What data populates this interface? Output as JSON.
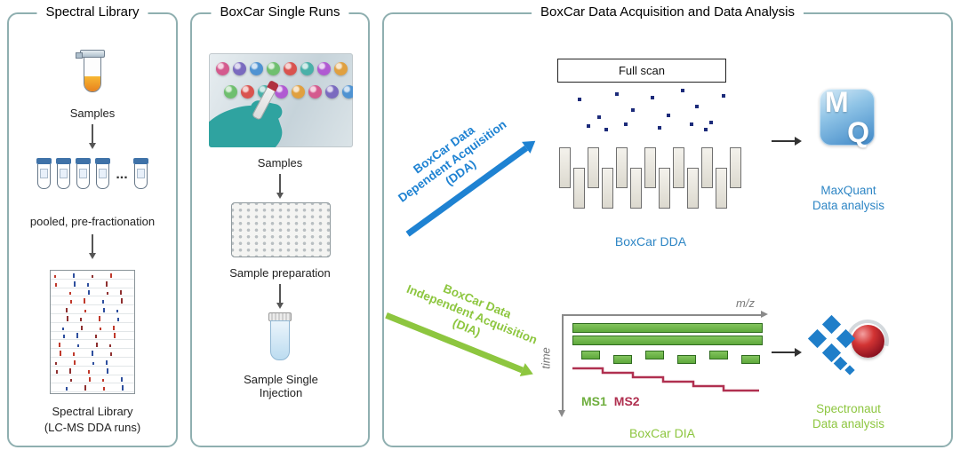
{
  "colors": {
    "panel-border": "#8FAFB0",
    "blue": "#1E82D2",
    "green": "#8DC63F",
    "caption-blue": "#2E86C5",
    "ms1-green": "#6FAE3E",
    "ms2-red": "#B03050",
    "ion-navy": "#1C2B7A",
    "axis-gray": "#8a8a8a"
  },
  "panel1": {
    "title": "Spectral Library",
    "samples_label": "Samples",
    "ellipsis": "...",
    "pooled_label": "pooled, pre-fractionation",
    "footer_line1": "Spectral Library",
    "footer_line2": "(LC-MS DDA runs)"
  },
  "panel2": {
    "title": "BoxCar Single Runs",
    "samples_label": "Samples",
    "prep_label": "Sample preparation",
    "injection_label": "Sample Single Injection"
  },
  "panel3": {
    "title": "BoxCar Data Acquisition and Data Analysis",
    "dda": {
      "label_lines": [
        "BoxCar Data",
        "Dependent Acquisition",
        "(DDA)"
      ],
      "full_scan": "Full scan",
      "caption": "BoxCar DDA",
      "logo_m": "M",
      "logo_q": "Q",
      "tool_line1": "MaxQuant",
      "tool_line2": "Data analysis"
    },
    "dia": {
      "label_lines": [
        "BoxCar Data",
        "Independent Acquisition",
        "(DIA)"
      ],
      "mz_label": "m/z",
      "time_label": "time",
      "ms1_label": "MS1",
      "ms2_label": "MS2",
      "caption": "BoxCar DIA",
      "tool_line1": "Spectronaut",
      "tool_line2": "Data analysis"
    }
  }
}
